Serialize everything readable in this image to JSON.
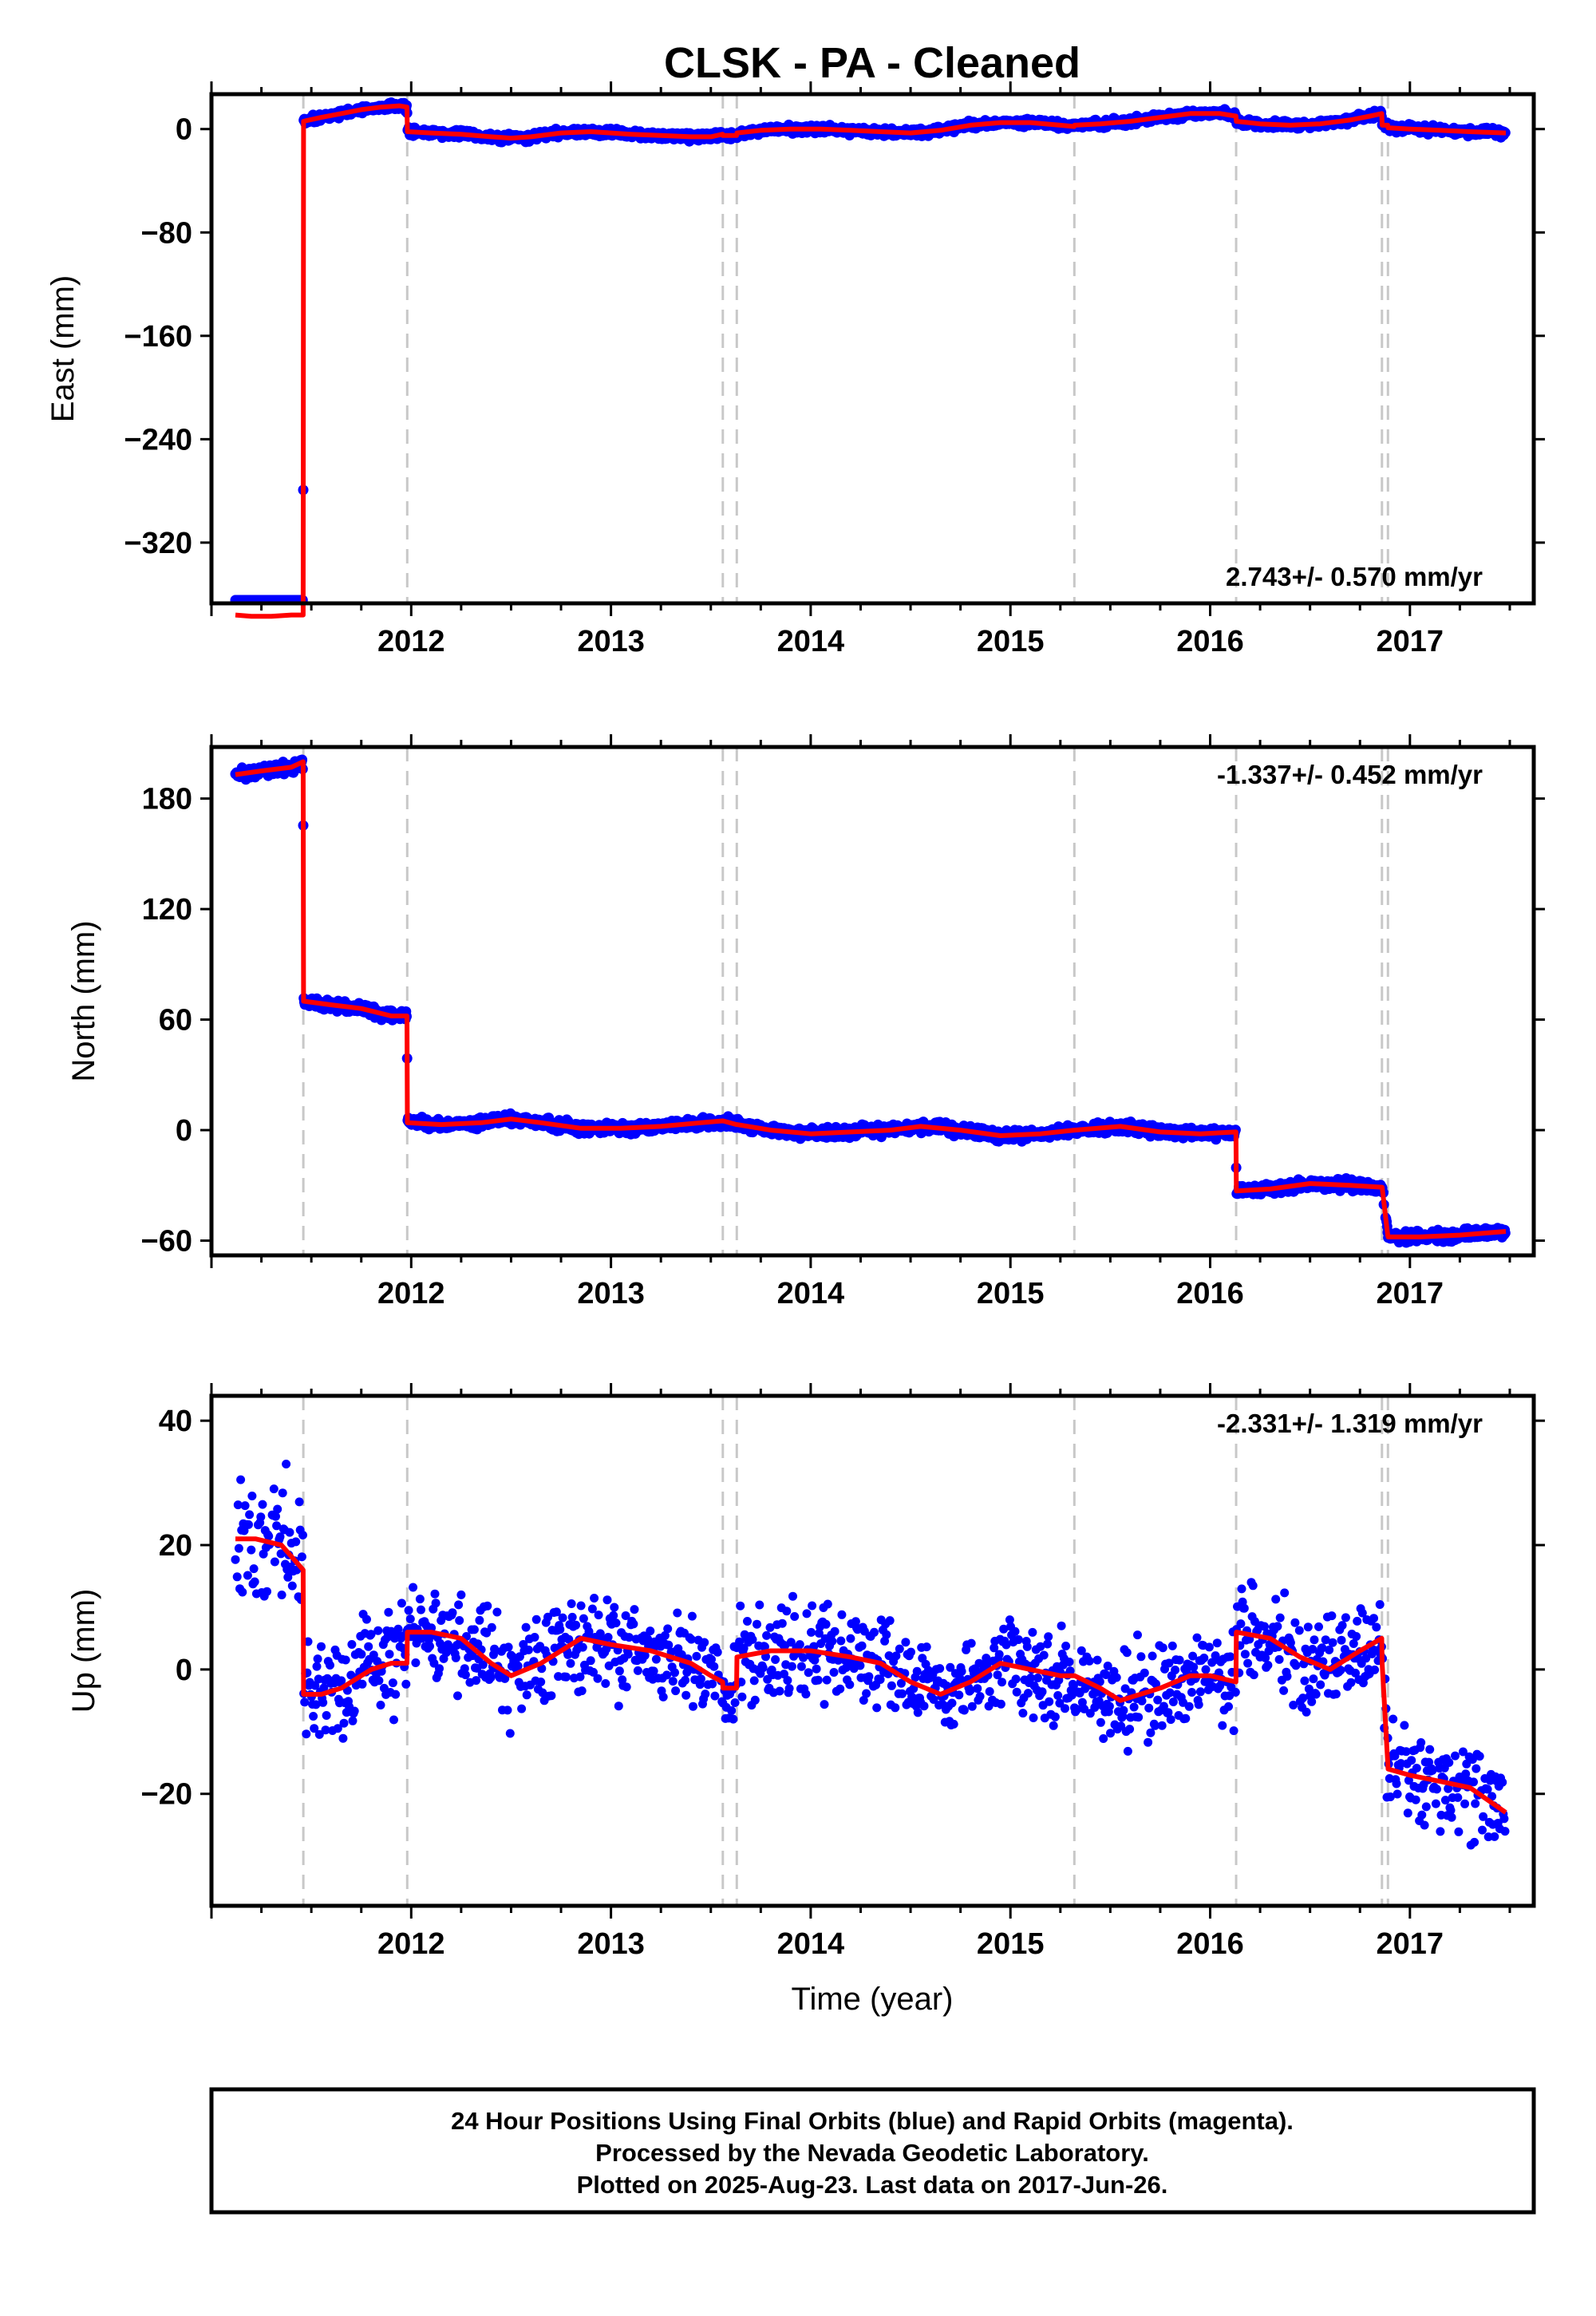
{
  "title": "CLSK  - PA - Cleaned",
  "xlabel": "Time (year)",
  "caption": [
    "24 Hour Positions Using Final Orbits (blue) and Rapid Orbits (magenta).",
    "Processed by the Nevada Geodetic Laboratory.",
    "Plotted on 2025-Aug-23. Last data on 2017-Jun-26."
  ],
  "colors": {
    "data_points": "#0000ff",
    "model_fit": "#ff0000",
    "event_lines": "#c8c8c8"
  },
  "chart_data": [
    {
      "type": "scatter",
      "id": "east",
      "ylabel": "East (mm)",
      "rate_text": "2.743+/- 0.570 mm/yr",
      "rate_position": "bottom-right",
      "xlim": [
        2011.0,
        2017.62
      ],
      "ylim": [
        -367,
        27
      ],
      "xticks": [
        2012,
        2013,
        2014,
        2015,
        2016,
        2017
      ],
      "yticks": [
        0,
        -80,
        -160,
        -240,
        -320
      ],
      "yticks_display": [
        "0",
        "−80",
        "−160",
        "−240",
        "−320"
      ],
      "event_lines": [
        2011.46,
        2011.98,
        2013.56,
        2013.63,
        2015.32,
        2016.13,
        2016.86,
        2016.89
      ],
      "series": [
        {
          "name": "model",
          "kind": "line",
          "x": [
            2011.12,
            2011.2,
            2011.3,
            2011.4,
            2011.459,
            2011.461,
            2011.55,
            2011.65,
            2011.75,
            2011.85,
            2011.94,
            2011.979,
            2011.981,
            2012.1,
            2012.25,
            2012.4,
            2012.5,
            2012.6,
            2012.75,
            2012.9,
            2013.0,
            2013.1,
            2013.25,
            2013.4,
            2013.5,
            2013.559,
            2013.561,
            2013.629,
            2013.631,
            2013.75,
            2013.9,
            2014.05,
            2014.2,
            2014.35,
            2014.5,
            2014.65,
            2014.8,
            2014.95,
            2015.1,
            2015.25,
            2015.319,
            2015.321,
            2015.45,
            2015.6,
            2015.75,
            2015.9,
            2016.05,
            2016.129,
            2016.131,
            2016.25,
            2016.4,
            2016.55,
            2016.7,
            2016.8,
            2016.859,
            2016.861,
            2016.889,
            2016.891,
            2017.0,
            2017.15,
            2017.3,
            2017.48
          ],
          "y": [
            -376,
            -377,
            -377,
            -376,
            -376,
            6,
            9,
            12,
            15,
            17,
            18,
            17,
            -2,
            -3,
            -4,
            -6,
            -7,
            -6,
            -3,
            -2,
            -3,
            -4,
            -5,
            -6,
            -6,
            -4,
            -5,
            -5,
            -3,
            -1,
            0,
            0,
            -1,
            -2,
            -3,
            -1,
            3,
            5,
            5,
            3,
            2,
            3,
            4,
            6,
            9,
            12,
            12,
            10,
            6,
            4,
            3,
            4,
            7,
            10,
            12,
            3,
            3,
            1,
            0,
            -1,
            -2,
            -3
          ]
        }
      ]
    },
    {
      "type": "scatter",
      "id": "north",
      "ylabel": "North (mm)",
      "rate_text": "-1.337+/- 0.452 mm/yr",
      "rate_position": "top-right",
      "xlim": [
        2011.0,
        2017.62
      ],
      "ylim": [
        -68,
        208
      ],
      "xticks": [
        2012,
        2013,
        2014,
        2015,
        2016,
        2017
      ],
      "yticks": [
        180,
        120,
        60,
        0,
        -60
      ],
      "yticks_display": [
        "180",
        "120",
        "60",
        "0",
        "−60"
      ],
      "event_lines": [
        2011.46,
        2011.98,
        2013.56,
        2013.63,
        2015.32,
        2016.13,
        2016.86,
        2016.89
      ],
      "series": [
        {
          "name": "model",
          "kind": "line",
          "x": [
            2011.12,
            2011.25,
            2011.4,
            2011.459,
            2011.461,
            2011.6,
            2011.75,
            2011.9,
            2011.979,
            2011.981,
            2012.15,
            2012.35,
            2012.5,
            2012.65,
            2012.85,
            2013.05,
            2013.25,
            2013.45,
            2013.559,
            2013.561,
            2013.629,
            2013.631,
            2013.8,
            2014.0,
            2014.2,
            2014.4,
            2014.55,
            2014.75,
            2014.95,
            2015.15,
            2015.319,
            2015.321,
            2015.55,
            2015.75,
            2015.95,
            2016.129,
            2016.131,
            2016.3,
            2016.5,
            2016.7,
            2016.859,
            2016.861,
            2016.889,
            2016.891,
            2017.05,
            2017.25,
            2017.48
          ],
          "y": [
            193,
            195,
            197,
            200,
            70,
            68,
            66,
            62,
            62,
            4,
            3,
            4,
            6,
            4,
            1,
            1,
            2,
            4,
            5,
            5,
            3,
            3,
            0,
            -2,
            -1,
            0,
            2,
            0,
            -3,
            -2,
            0,
            0,
            2,
            -1,
            -2,
            -1,
            -33,
            -32,
            -29,
            -30,
            -31,
            -31,
            -57,
            -58,
            -58,
            -57,
            -55
          ]
        }
      ]
    },
    {
      "type": "scatter",
      "id": "up",
      "ylabel": "Up (mm)",
      "rate_text": "-2.331+/- 1.319 mm/yr",
      "rate_position": "top-right",
      "xlim": [
        2011.0,
        2017.62
      ],
      "ylim": [
        -38,
        44
      ],
      "xticks": [
        2012,
        2013,
        2014,
        2015,
        2016,
        2017
      ],
      "yticks": [
        40,
        20,
        0,
        -20
      ],
      "yticks_display": [
        "40",
        "20",
        "0",
        "−20"
      ],
      "event_lines": [
        2011.46,
        2011.98,
        2013.56,
        2013.63,
        2015.32,
        2016.13,
        2016.86,
        2016.89
      ],
      "series": [
        {
          "name": "model",
          "kind": "line",
          "x": [
            2011.12,
            2011.22,
            2011.35,
            2011.459,
            2011.461,
            2011.55,
            2011.65,
            2011.8,
            2011.9,
            2011.979,
            2011.981,
            2012.1,
            2012.25,
            2012.4,
            2012.5,
            2012.65,
            2012.85,
            2013.0,
            2013.2,
            2013.4,
            2013.5,
            2013.559,
            2013.561,
            2013.629,
            2013.631,
            2013.8,
            2014.0,
            2014.2,
            2014.35,
            2014.5,
            2014.65,
            2014.8,
            2014.95,
            2015.1,
            2015.25,
            2015.319,
            2015.321,
            2015.45,
            2015.55,
            2015.75,
            2015.9,
            2016.0,
            2016.129,
            2016.131,
            2016.3,
            2016.45,
            2016.6,
            2016.75,
            2016.859,
            2016.861,
            2016.889,
            2016.891,
            2017.0,
            2017.15,
            2017.3,
            2017.48
          ],
          "y": [
            21,
            21,
            20,
            16,
            -4,
            -4,
            -3,
            0,
            1,
            1,
            6,
            6,
            5,
            1,
            -1,
            1,
            5,
            4,
            3,
            1,
            -1,
            -2,
            -3,
            -3,
            2,
            3,
            3,
            2,
            1,
            -2,
            -4,
            -2,
            1,
            0,
            -1,
            -1,
            -1,
            -3,
            -5,
            -3,
            -1,
            -1,
            -2,
            6,
            5,
            2,
            0,
            3,
            5,
            1,
            -15,
            -16,
            -17,
            -18,
            -19,
            -23
          ]
        }
      ]
    }
  ]
}
